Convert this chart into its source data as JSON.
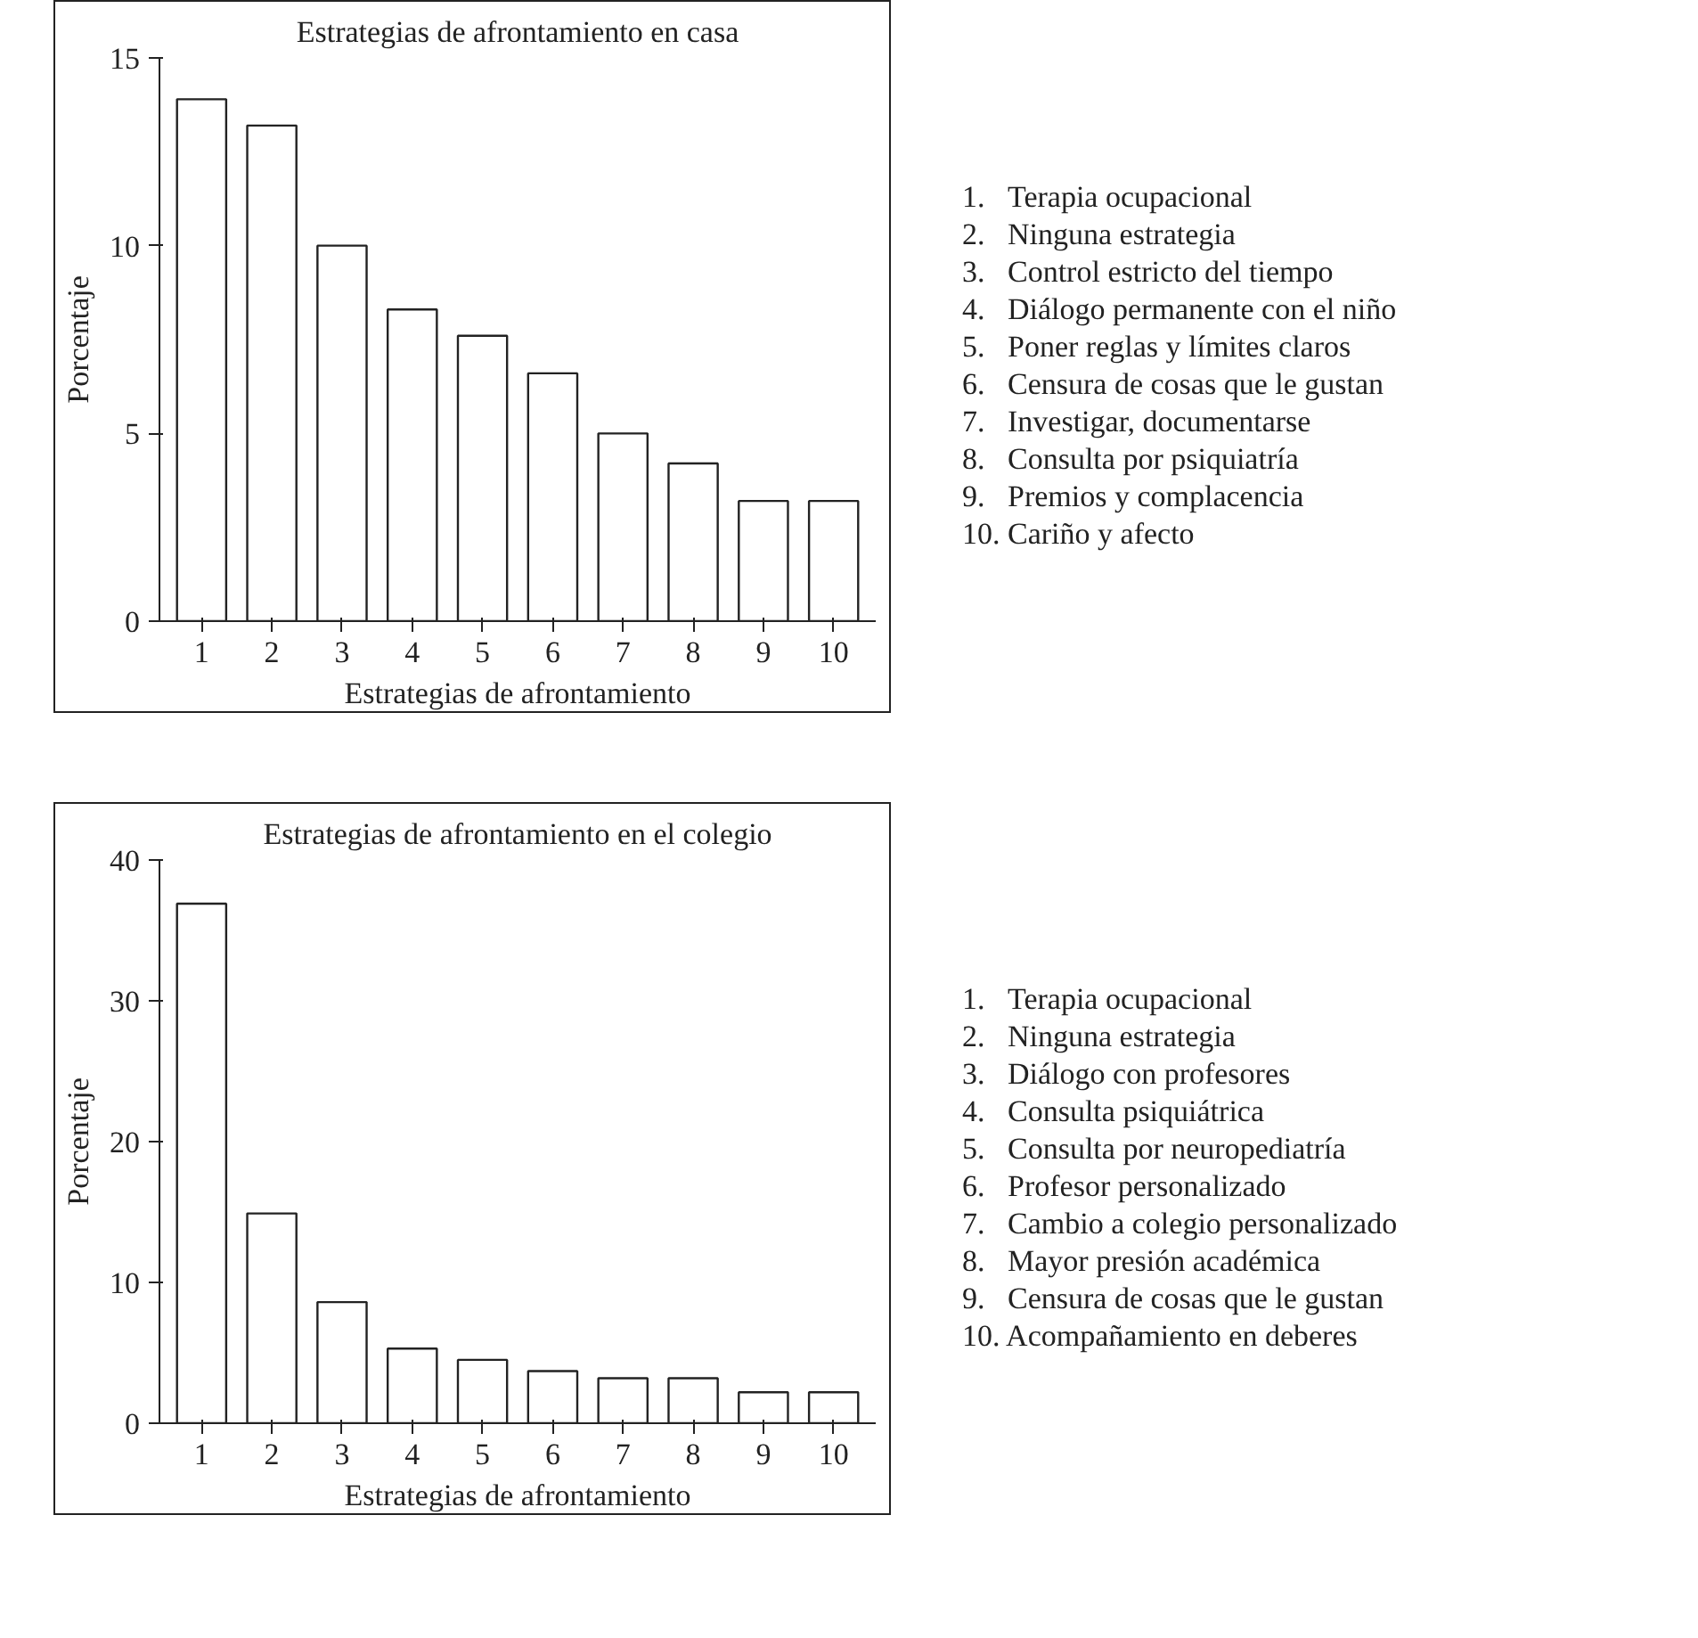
{
  "chart_data": [
    {
      "type": "bar",
      "title": "Estrategias de afrontamiento en casa",
      "xlabel": "Estrategias de afrontamiento",
      "ylabel": "Porcentaje",
      "categories": [
        "1",
        "2",
        "3",
        "4",
        "5",
        "6",
        "7",
        "8",
        "9",
        "10"
      ],
      "values": [
        13.9,
        13.2,
        10.0,
        8.3,
        7.6,
        6.6,
        5.0,
        4.2,
        3.2,
        3.2
      ],
      "color": "#ffffff",
      "ylim": [
        0,
        15
      ],
      "yticks": [
        0,
        5,
        10,
        15
      ],
      "grid": false,
      "annotations": [
        "1.   Terapia ocupacional",
        "2.   Ninguna estrategia",
        "3.   Control estricto del tiempo",
        "4.   Diálogo permanente con el niño",
        "5.   Poner reglas y límites claros",
        "6.   Censura de cosas que le gustan",
        "7.   Investigar, documentarse",
        "8.   Consulta por psiquiatría",
        "9.   Premios y complacencia",
        "10. Cariño y afecto"
      ]
    },
    {
      "type": "bar",
      "title": "Estrategias de afrontamiento en el colegio",
      "xlabel": "Estrategias de afrontamiento",
      "ylabel": "Porcentaje",
      "categories": [
        "1",
        "2",
        "3",
        "4",
        "5",
        "6",
        "7",
        "8",
        "9",
        "10"
      ],
      "values": [
        36.9,
        14.9,
        8.6,
        5.3,
        4.5,
        3.7,
        3.2,
        3.2,
        2.2,
        2.2
      ],
      "color": "#ffffff",
      "ylim": [
        0,
        40
      ],
      "yticks": [
        0,
        10,
        20,
        30,
        40
      ],
      "grid": false,
      "annotations": [
        "1.   Terapia ocupacional",
        "2.   Ninguna estrategia",
        "3.   Diálogo con profesores",
        "4.   Consulta psiquiátrica",
        "5.   Consulta por neuropediatría",
        "6.   Profesor personalizado",
        "7.   Cambio a colegio personalizado",
        "8.   Mayor presión académica",
        "9.   Censura de cosas que le gustan",
        "10. Acompañamiento en deberes"
      ]
    }
  ]
}
